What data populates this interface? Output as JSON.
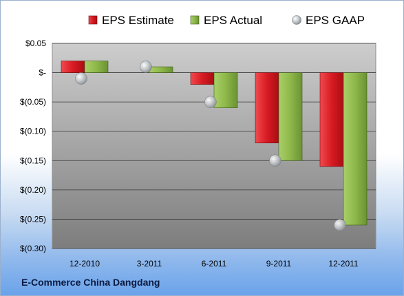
{
  "footer": {
    "company": "E-Commerce China Dangdang"
  },
  "colors": {
    "estimate": "#d81a22",
    "actual": "#8eb84a",
    "gaap": "#b4b8bc",
    "plot_top": "#cdcdcd",
    "plot_bottom": "#7d7d7d"
  },
  "chart_data": {
    "type": "bar",
    "categories": [
      "12-2010",
      "3-2011",
      "6-2011",
      "9-2011",
      "12-2011"
    ],
    "series": [
      {
        "name": "EPS Estimate",
        "kind": "bar",
        "values": [
          0.02,
          null,
          -0.02,
          -0.12,
          -0.16
        ]
      },
      {
        "name": "EPS Actual",
        "kind": "bar",
        "values": [
          0.02,
          0.01,
          -0.06,
          -0.15,
          -0.26
        ]
      },
      {
        "name": "EPS GAAP",
        "kind": "point",
        "values": [
          -0.01,
          0.01,
          -0.05,
          -0.15,
          -0.26
        ]
      }
    ],
    "yticks": [
      {
        "value": 0.05,
        "label": "$0.05"
      },
      {
        "value": 0,
        "label": "$-"
      },
      {
        "value": -0.05,
        "label": "$(0.05)"
      },
      {
        "value": -0.1,
        "label": "$(0.10)"
      },
      {
        "value": -0.15,
        "label": "$(0.15)"
      },
      {
        "value": -0.2,
        "label": "$(0.20)"
      },
      {
        "value": -0.25,
        "label": "$(0.25)"
      },
      {
        "value": -0.3,
        "label": "$(0.30)"
      }
    ],
    "ylim": [
      -0.3,
      0.05
    ],
    "grid": true,
    "legend": "top"
  }
}
